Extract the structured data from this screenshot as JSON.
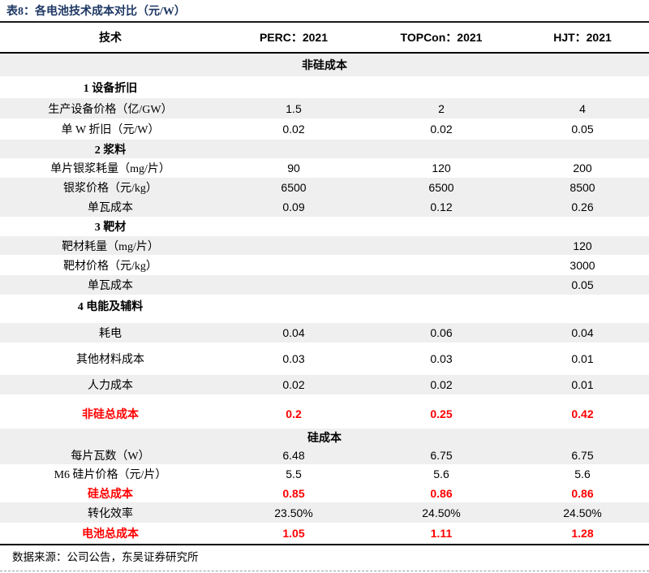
{
  "title": "表8：各电池技术成本对比（元/W）",
  "header": {
    "tech_label": "技术",
    "columns": [
      "PERC：2021",
      "TOPCon：2021",
      "HJT：2021"
    ]
  },
  "rows": [
    {
      "type": "section",
      "label": "非硅成本",
      "values": [
        "",
        "",
        ""
      ]
    },
    {
      "type": "group",
      "label": "1 设备折旧",
      "values": [
        "",
        "",
        ""
      ]
    },
    {
      "type": "data",
      "label": "生产设备价格（亿/GW）",
      "values": [
        "1.5",
        "2",
        "4"
      ]
    },
    {
      "type": "data",
      "label": "单 W 折旧（元/W）",
      "values": [
        "0.02",
        "0.02",
        "0.05"
      ]
    },
    {
      "type": "group",
      "label": "2 浆料",
      "values": [
        "",
        "",
        ""
      ]
    },
    {
      "type": "data",
      "label": "单片银浆耗量（mg/片）",
      "values": [
        "90",
        "120",
        "200"
      ]
    },
    {
      "type": "data",
      "label": "银浆价格（元/kg）",
      "values": [
        "6500",
        "6500",
        "8500"
      ]
    },
    {
      "type": "data",
      "label": "单瓦成本",
      "values": [
        "0.09",
        "0.12",
        "0.26"
      ]
    },
    {
      "type": "group",
      "label": "3 靶材",
      "values": [
        "",
        "",
        ""
      ]
    },
    {
      "type": "data",
      "label": "靶材耗量（mg/片）",
      "values": [
        "",
        "",
        "120"
      ]
    },
    {
      "type": "data",
      "label": "靶材价格（元/kg）",
      "values": [
        "",
        "",
        "3000"
      ]
    },
    {
      "type": "data",
      "label": "单瓦成本",
      "values": [
        "",
        "",
        "0.05"
      ]
    },
    {
      "type": "group",
      "label": "4 电能及辅料",
      "values": [
        "",
        "",
        ""
      ]
    },
    {
      "type": "data",
      "label": "耗电",
      "values": [
        "0.04",
        "0.06",
        "0.04"
      ]
    },
    {
      "type": "data",
      "label": "其他材料成本",
      "values": [
        "0.03",
        "0.03",
        "0.01"
      ]
    },
    {
      "type": "data",
      "label": "人力成本",
      "values": [
        "0.02",
        "0.02",
        "0.01"
      ]
    },
    {
      "type": "total",
      "label": "非硅总成本",
      "values": [
        "0.2",
        "0.25",
        "0.42"
      ]
    },
    {
      "type": "section",
      "label": "硅成本",
      "values": [
        "",
        "",
        ""
      ]
    },
    {
      "type": "data",
      "label": "每片瓦数（W）",
      "values": [
        "6.48",
        "6.75",
        "6.75"
      ]
    },
    {
      "type": "data",
      "label": "M6 硅片价格（元/片）",
      "values": [
        "5.5",
        "5.6",
        "5.6"
      ]
    },
    {
      "type": "total",
      "label": "硅总成本",
      "values": [
        "0.85",
        "0.86",
        "0.86"
      ]
    },
    {
      "type": "data",
      "label": "转化效率",
      "values": [
        "23.50%",
        "24.50%",
        "24.50%"
      ]
    },
    {
      "type": "total",
      "label": "电池总成本",
      "values": [
        "1.05",
        "1.11",
        "1.28"
      ]
    }
  ],
  "footer": {
    "source": "数据来源：公司公告，东吴证券研究所"
  },
  "colors": {
    "title_navy": "#1F3864",
    "total_red": "#FF0000",
    "stripe_gray": "#EFEFEF",
    "rule_black": "#000000"
  }
}
